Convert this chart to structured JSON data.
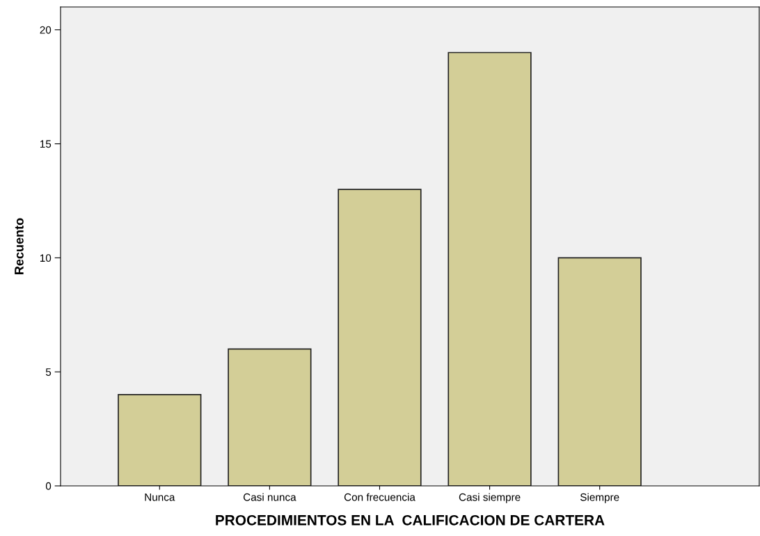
{
  "chart_data": {
    "type": "bar",
    "xlabel": "PROCEDIMIENTOS EN LA  CALIFICACION DE CARTERA",
    "ylabel": "Recuento",
    "categories": [
      "Nunca",
      "Casi nunca",
      "Con frecuencia",
      "Casi siempre",
      "Siempre"
    ],
    "values": [
      4,
      6,
      13,
      19,
      10
    ],
    "color": "#d3ce97",
    "ylim": [
      0,
      21
    ],
    "yticks": [
      0,
      5,
      10,
      15,
      20
    ],
    "grid": false,
    "legend": false
  }
}
